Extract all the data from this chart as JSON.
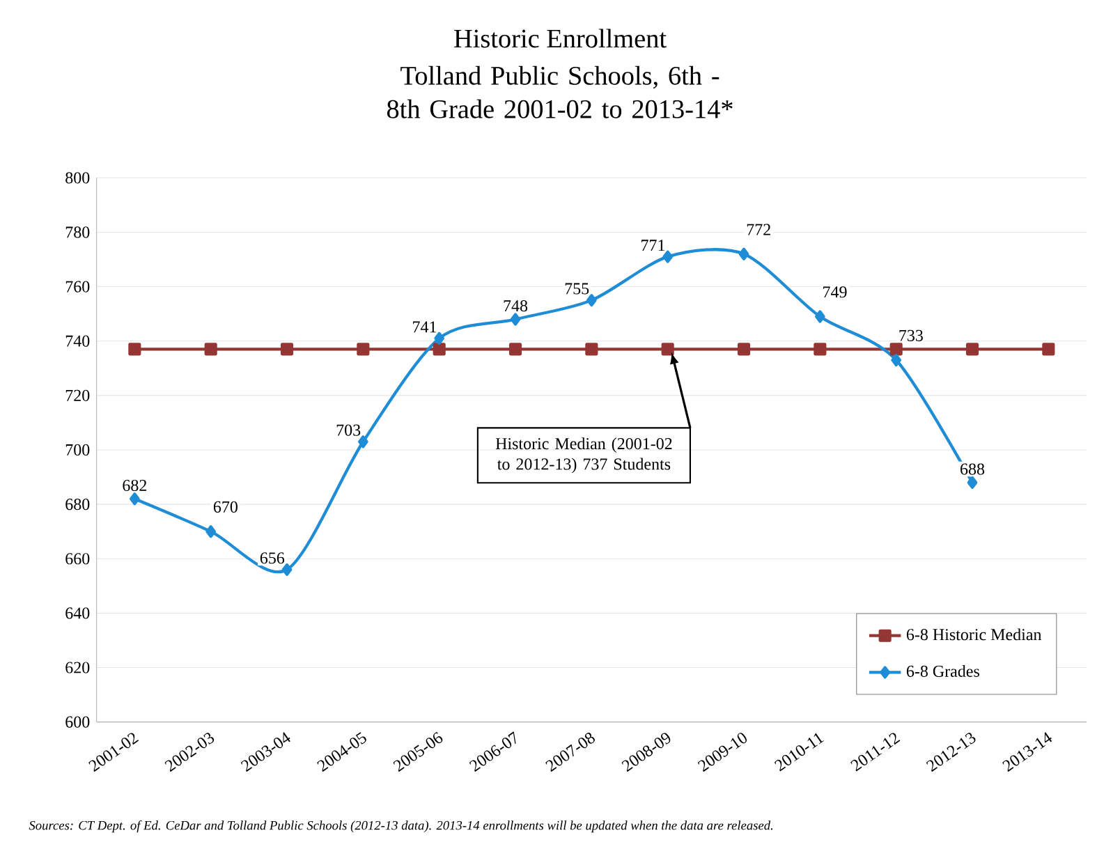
{
  "chart_data": {
    "type": "line",
    "title": "Historic Enrollment",
    "subtitle": "Tolland Public Schools, 6th - 8th Grade 2001-02 to 2013-14*",
    "categories": [
      "2001-02",
      "2002-03",
      "2003-04",
      "2004-05",
      "2005-06",
      "2006-07",
      "2007-08",
      "2008-09",
      "2009-10",
      "2010-11",
      "2011-12",
      "2012-13",
      "2013-14"
    ],
    "series": [
      {
        "name": "6-8 Historic Median",
        "color": "#943634",
        "marker": "square",
        "values": [
          737,
          737,
          737,
          737,
          737,
          737,
          737,
          737,
          737,
          737,
          737,
          737,
          737
        ]
      },
      {
        "name": "6-8 Grades",
        "color": "#1f8dd6",
        "marker": "diamond",
        "values": [
          682,
          670,
          656,
          703,
          741,
          748,
          755,
          771,
          772,
          749,
          733,
          688,
          null
        ],
        "value_labels": [
          "682",
          "670",
          "656",
          "703",
          "741",
          "748",
          "755",
          "771",
          "772",
          "749",
          "733",
          "688",
          null
        ]
      }
    ],
    "ylim": [
      600,
      800
    ],
    "yticks": [
      600,
      620,
      640,
      660,
      680,
      700,
      720,
      740,
      760,
      780,
      800
    ],
    "grid": "y",
    "legend": "bottom right",
    "line_style": "solid",
    "annotations": [
      "Historic Median (2001-02 to 2012-13) 737 Students",
      "Sources: CT Dept. of Ed. CeDar and Tolland Public Schools (2012-13 data). 2013-14 enrollments will be updated when the data are released."
    ]
  }
}
